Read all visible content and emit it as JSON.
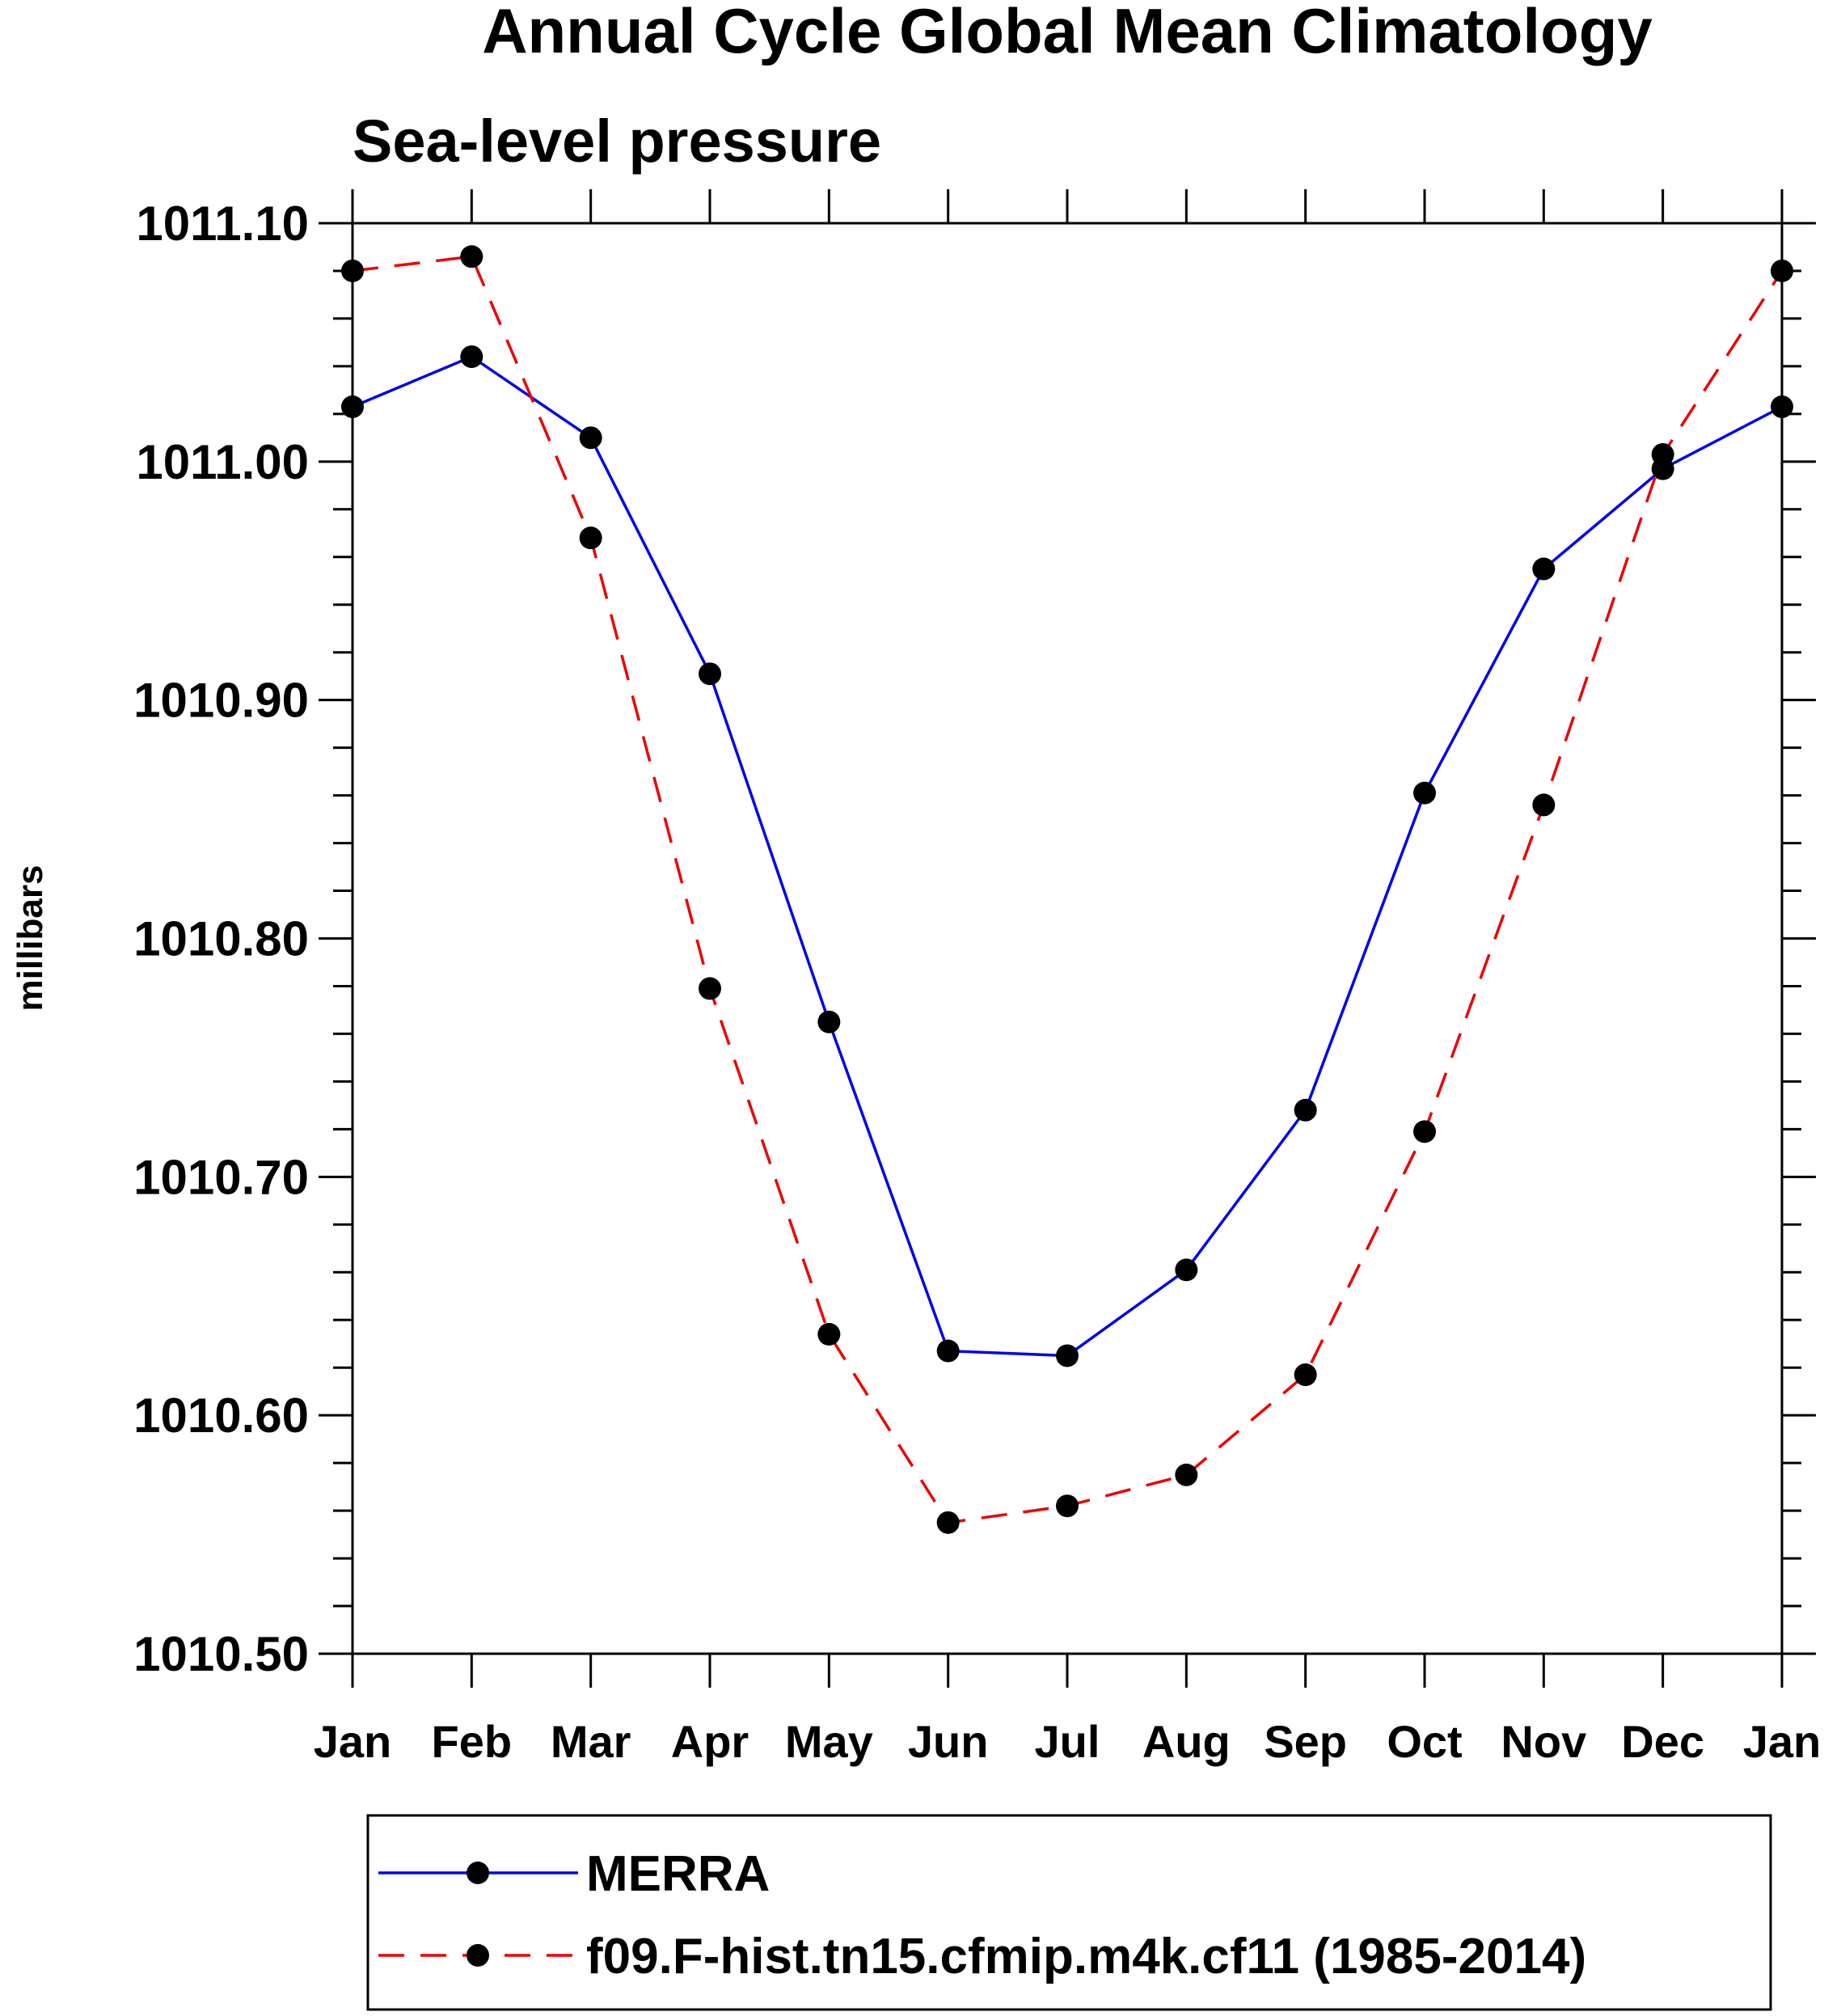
{
  "chart_data": {
    "type": "line",
    "title": "Annual Cycle Global Mean Climatology",
    "subtitle": "Sea-level pressure",
    "ylabel": "millibars",
    "xlabel": "",
    "categories": [
      "Jan",
      "Feb",
      "Mar",
      "Apr",
      "May",
      "Jun",
      "Jul",
      "Aug",
      "Sep",
      "Oct",
      "Nov",
      "Dec",
      "Jan"
    ],
    "ylim": [
      1010.5,
      1011.1
    ],
    "yticks": [
      1010.5,
      1010.6,
      1010.7,
      1010.8,
      1010.9,
      1011.0,
      1011.1
    ],
    "ytick_labels": [
      "1010.50",
      "1010.60",
      "1010.70",
      "1010.80",
      "1010.90",
      "1011.00",
      "1011.10"
    ],
    "y_minor_step": 0.02,
    "grid": false,
    "legend_position": "bottom",
    "series": [
      {
        "name": "MERRA",
        "color": "#0000ee",
        "line_style": "solid",
        "values": [
          1011.023,
          1011.044,
          1011.01,
          1010.911,
          1010.765,
          1010.627,
          1010.625,
          1010.661,
          1010.728,
          1010.861,
          1010.955,
          1010.997,
          1011.023
        ]
      },
      {
        "name": "f09.F-hist.tn15.cfmip.m4k.cf11 (1985-2014)",
        "color": "#ee0000",
        "line_style": "dashed",
        "values": [
          1011.08,
          1011.086,
          1010.968,
          1010.779,
          1010.634,
          1010.555,
          1010.562,
          1010.575,
          1010.617,
          1010.719,
          1010.856,
          1011.003,
          1011.08
        ]
      }
    ]
  }
}
